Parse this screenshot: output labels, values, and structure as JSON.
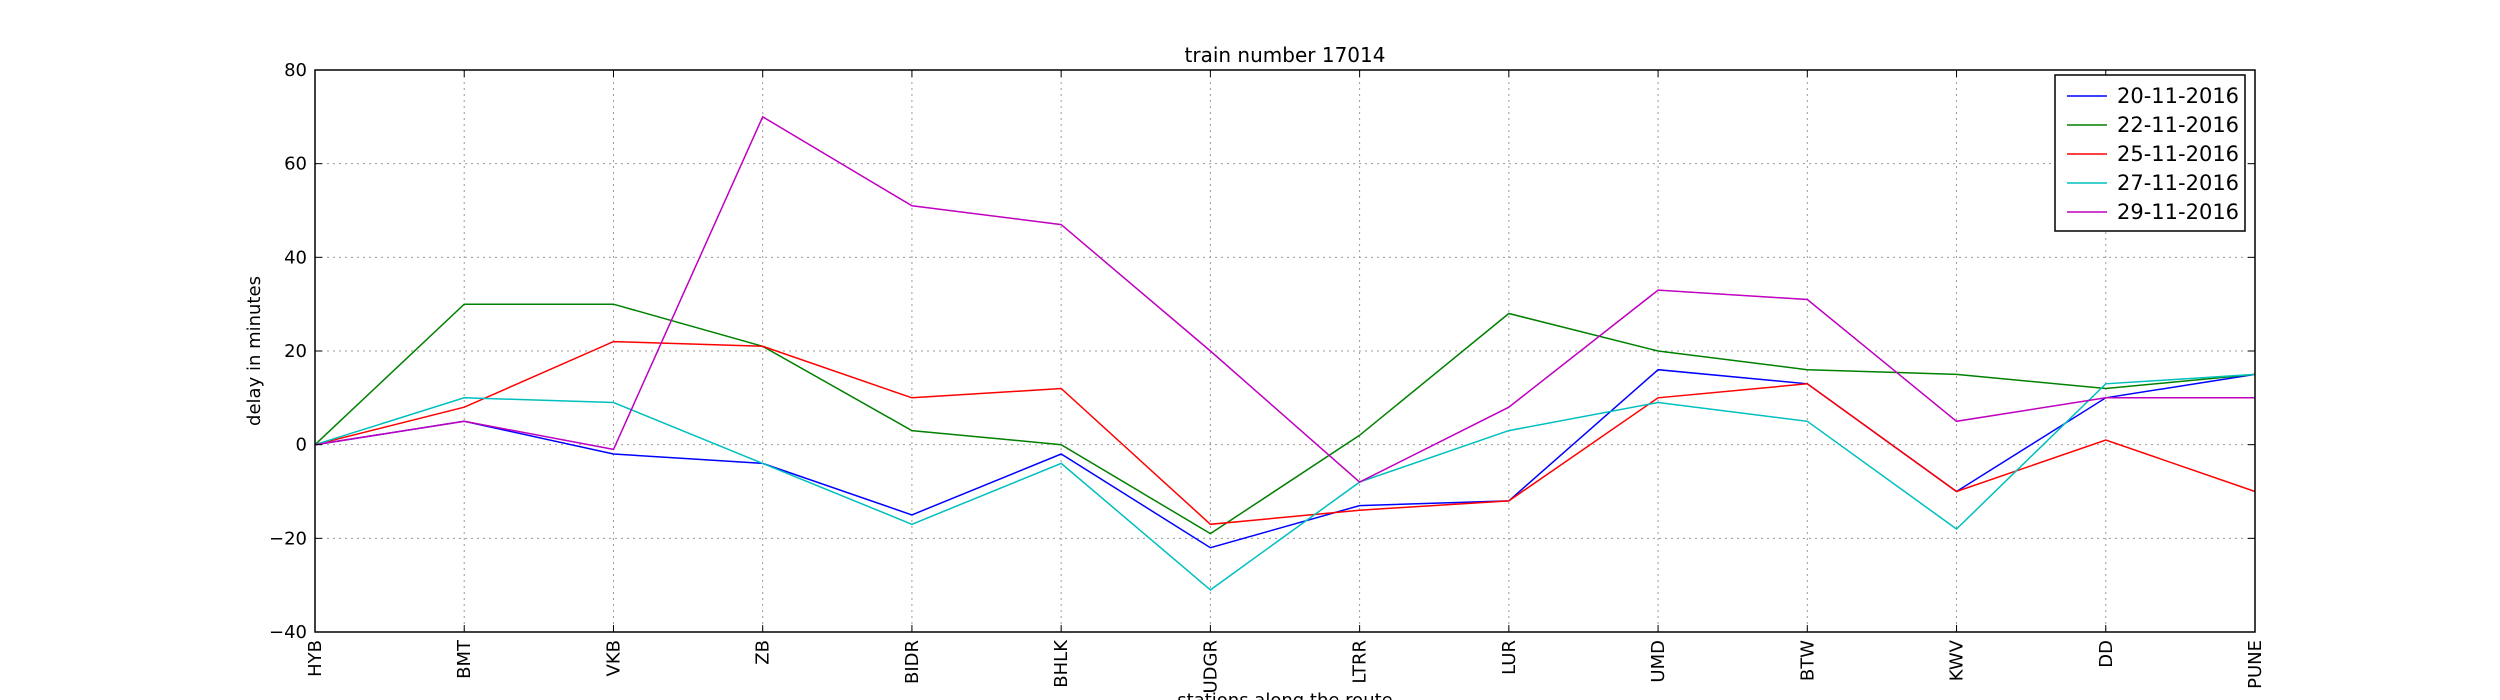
{
  "chart_data": {
    "type": "line",
    "title": "train number 17014",
    "xlabel": "stations along the route",
    "ylabel": "delay in minutes",
    "categories": [
      "HYB",
      "BMT",
      "VKB",
      "ZB",
      "BIDR",
      "BHLK",
      "UDGR",
      "LTRR",
      "LUR",
      "UMD",
      "BTW",
      "KWV",
      "DD",
      "PUNE"
    ],
    "ylim": [
      -40,
      80
    ],
    "yticks": [
      -40,
      -20,
      0,
      20,
      40,
      60,
      80
    ],
    "ytick_labels": [
      "−40",
      "−20",
      "0",
      "20",
      "40",
      "60",
      "80"
    ],
    "grid": true,
    "legend_position": "top-right",
    "series": [
      {
        "name": "20-11-2016",
        "color": "#0000ff",
        "values": [
          0,
          5,
          -2,
          -4,
          -15,
          -2,
          -22,
          -13,
          -12,
          16,
          13,
          -10,
          10,
          15
        ]
      },
      {
        "name": "22-11-2016",
        "color": "#008000",
        "values": [
          0,
          30,
          30,
          21,
          3,
          0,
          -19,
          2,
          28,
          20,
          16,
          15,
          12,
          15
        ]
      },
      {
        "name": "25-11-2016",
        "color": "#ff0000",
        "values": [
          0,
          8,
          22,
          21,
          10,
          12,
          -17,
          -14,
          -12,
          10,
          13,
          -10,
          1,
          -10
        ]
      },
      {
        "name": "27-11-2016",
        "color": "#00bfbf",
        "values": [
          0,
          10,
          9,
          -4,
          -17,
          -4,
          -31,
          -8,
          3,
          9,
          5,
          -18,
          13,
          15
        ]
      },
      {
        "name": "29-11-2016",
        "color": "#bf00bf",
        "values": [
          0,
          5,
          -1,
          70,
          51,
          47,
          20,
          -8,
          8,
          33,
          31,
          5,
          10,
          10
        ]
      }
    ]
  }
}
